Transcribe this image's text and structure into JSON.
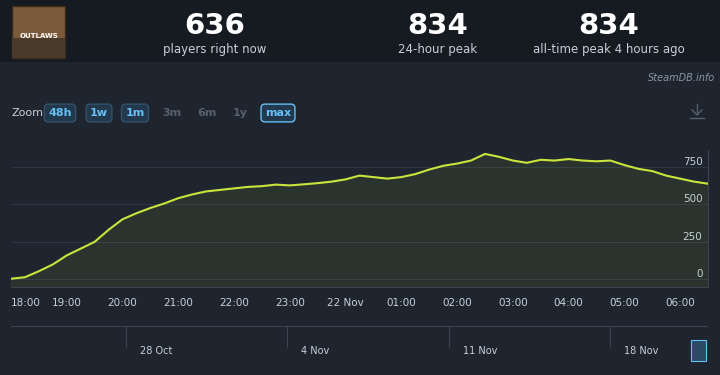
{
  "header": {
    "thumbnail_text": "OUTLAWS",
    "stats": [
      {
        "value": 636,
        "label": "players right now"
      },
      {
        "value": 834,
        "label": "24-hour peak"
      },
      {
        "value": 834,
        "label": "all-time peak 4 hours ago"
      }
    ],
    "source": "SteamDB.info"
  },
  "toolbar": {
    "label": "Zoom",
    "buttons": [
      {
        "text": "48h",
        "enabled": true
      },
      {
        "text": "1w",
        "enabled": true
      },
      {
        "text": "1m",
        "enabled": true
      },
      {
        "text": "3m",
        "enabled": false
      },
      {
        "text": "6m",
        "enabled": false
      },
      {
        "text": "1y",
        "enabled": false
      },
      {
        "text": "max",
        "enabled": true
      }
    ],
    "selected": "max"
  },
  "chart_data": {
    "type": "area",
    "categories": [
      "18:00",
      null,
      null,
      null,
      "19:00",
      null,
      null,
      null,
      "20:00",
      null,
      null,
      null,
      "21:00",
      null,
      null,
      null,
      "22:00",
      null,
      null,
      null,
      "23:00",
      null,
      null,
      null,
      "22 Nov",
      null,
      null,
      null,
      "01:00",
      null,
      null,
      null,
      "02:00",
      null,
      null,
      null,
      "03:00",
      null,
      null,
      null,
      "04:00",
      null,
      null,
      null,
      "05:00",
      null,
      null,
      null,
      "06:00",
      null,
      null
    ],
    "values": [
      5,
      15,
      55,
      100,
      160,
      205,
      250,
      330,
      400,
      440,
      475,
      505,
      540,
      565,
      585,
      595,
      605,
      615,
      620,
      630,
      625,
      632,
      640,
      650,
      665,
      690,
      680,
      670,
      680,
      700,
      730,
      755,
      770,
      790,
      834,
      815,
      790,
      775,
      795,
      790,
      800,
      790,
      785,
      790,
      760,
      735,
      720,
      690,
      670,
      650,
      636
    ],
    "color": "#c8e43c",
    "ylim": [
      -50,
      860
    ],
    "yticks": [
      0,
      250,
      500,
      750
    ],
    "grid": true
  },
  "navigator": {
    "labels": [
      "28 Oct",
      "4 Nov",
      "11 Nov",
      "18 Nov"
    ]
  }
}
